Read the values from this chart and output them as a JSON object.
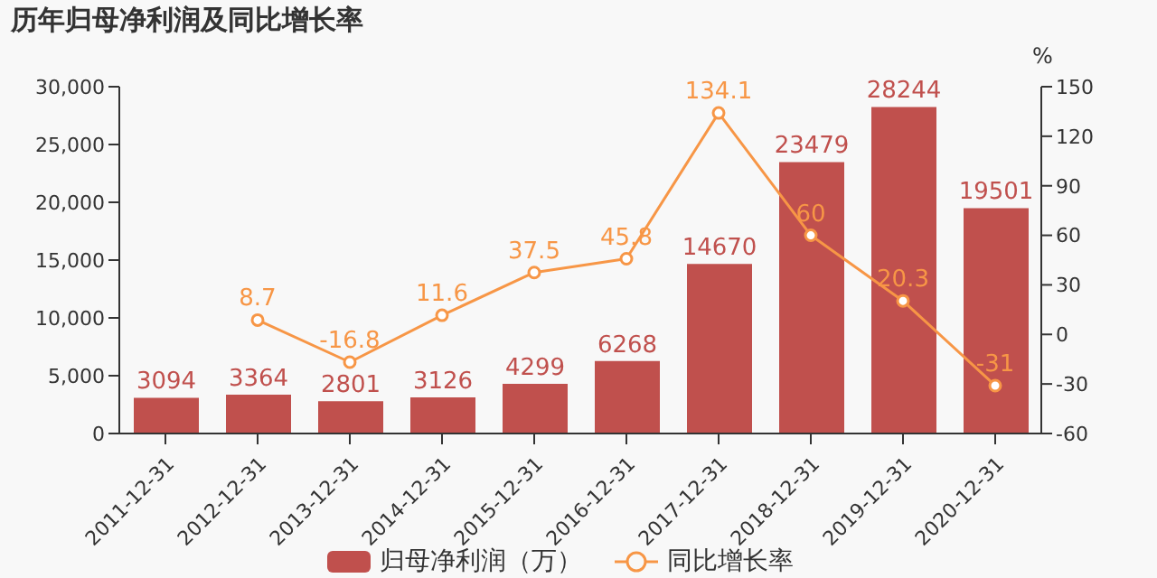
{
  "chart_data": {
    "type": "bar",
    "title": "历年归母净利润及同比增长率",
    "y2label": "%",
    "categories": [
      "2011-12-31",
      "2012-12-31",
      "2013-12-31",
      "2014-12-31",
      "2015-12-31",
      "2016-12-31",
      "2017-12-31",
      "2018-12-31",
      "2019-12-31",
      "2020-12-31"
    ],
    "series": [
      {
        "name": "归母净利润（万）",
        "color": "#c0504d",
        "values": [
          3094,
          3364,
          2801,
          3126,
          4299,
          6268,
          14670,
          23479,
          28244,
          19501
        ]
      },
      {
        "name": "同比增长率",
        "type": "line",
        "axis": "y2",
        "color": "#f79646",
        "values": [
          null,
          8.7,
          -16.8,
          11.6,
          37.5,
          45.8,
          134.1,
          60,
          20.3,
          -31
        ]
      }
    ],
    "ylim": [
      0,
      30000
    ],
    "yticks": [
      {
        "value": 0,
        "label": "0"
      },
      {
        "value": 5000,
        "label": "5,000"
      },
      {
        "value": 10000,
        "label": "10,000"
      },
      {
        "value": 15000,
        "label": "15,000"
      },
      {
        "value": 20000,
        "label": "20,000"
      },
      {
        "value": 25000,
        "label": "25,000"
      },
      {
        "value": 30000,
        "label": "30,000"
      }
    ],
    "y2lim": [
      -60,
      150
    ],
    "y2ticks": [
      -60,
      -30,
      0,
      30,
      60,
      90,
      120,
      150
    ],
    "data_labels": true,
    "grid": false,
    "legend": "bottom",
    "marker": "circle"
  }
}
